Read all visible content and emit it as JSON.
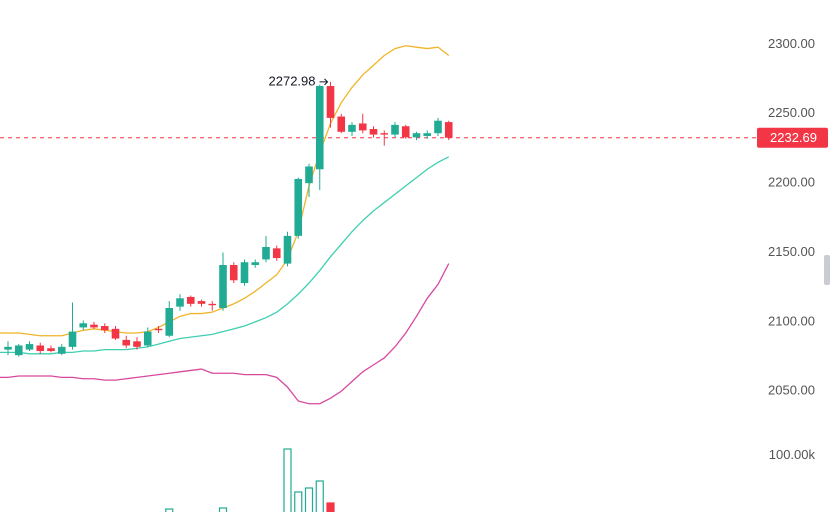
{
  "chart_data": {
    "type": "candlestick",
    "up_color": "#22ab94",
    "down_color": "#f23645",
    "open": [
      2080,
      2076,
      2080,
      2083,
      2081,
      2077,
      2082,
      2096,
      2098,
      2097,
      2095,
      2087,
      2086,
      2083,
      2095,
      2090,
      2111,
      2118,
      2115,
      2113,
      2110,
      2141,
      2128,
      2141,
      2145,
      2153,
      2142,
      2162,
      2200,
      2210,
      2270,
      2248,
      2237,
      2243,
      2239,
      2236,
      2235,
      2241,
      2233,
      2234,
      2236,
      2244
    ],
    "high": [
      2086,
      2084,
      2086,
      2085,
      2083,
      2084,
      2114,
      2101,
      2100,
      2099,
      2097,
      2090,
      2089,
      2096,
      2097,
      2115,
      2120,
      2119,
      2116,
      2115,
      2150,
      2143,
      2145,
      2145,
      2162,
      2155,
      2165,
      2204,
      2214,
      2271,
      2272.98,
      2250,
      2244,
      2250,
      2241,
      2238,
      2244,
      2242,
      2237,
      2238,
      2247,
      2245
    ],
    "low": [
      2076,
      2075,
      2079,
      2077,
      2078,
      2076,
      2080,
      2094,
      2095,
      2092,
      2087,
      2081,
      2080,
      2082,
      2092,
      2089,
      2108,
      2111,
      2111,
      2108,
      2108,
      2128,
      2126,
      2139,
      2143,
      2144,
      2140,
      2160,
      2190,
      2195,
      2240,
      2236,
      2234,
      2236,
      2233,
      2227,
      2233,
      2232,
      2231,
      2232,
      2234,
      2231
    ],
    "close": [
      2082,
      2083,
      2084,
      2079,
      2079,
      2082,
      2093,
      2099,
      2096,
      2094,
      2088,
      2083,
      2082,
      2093,
      2094,
      2110,
      2117,
      2113,
      2113,
      2112,
      2141,
      2130,
      2143,
      2143,
      2154,
      2146,
      2162,
      2203,
      2212,
      2270,
      2247,
      2237,
      2242,
      2238,
      2235,
      2235,
      2242,
      2233,
      2236,
      2236,
      2245,
      2232.69
    ],
    "lines": [
      {
        "color": "#f0b429",
        "values": [
          2092,
          2092,
          2091,
          2090,
          2090,
          2090,
          2092,
          2094,
          2095,
          2094,
          2093,
          2092,
          2092,
          2093,
          2096,
          2100,
          2104,
          2106,
          2106,
          2107,
          2110,
          2113,
          2117,
          2122,
          2128,
          2134,
          2145,
          2165,
          2198,
          2222,
          2243,
          2258,
          2269,
          2278,
          2285,
          2292,
          2297,
          2299,
          2298,
          2297,
          2298,
          2292
        ]
      },
      {
        "color": "#3fcfb0",
        "values": [
          2078,
          2078,
          2077,
          2077,
          2077,
          2078,
          2078,
          2079,
          2079,
          2080,
          2080,
          2080,
          2081,
          2082,
          2084,
          2086,
          2088,
          2089,
          2090,
          2091,
          2093,
          2095,
          2097,
          2100,
          2103,
          2107,
          2113,
          2120,
          2128,
          2137,
          2147,
          2156,
          2165,
          2173,
          2180,
          2186,
          2192,
          2198,
          2204,
          2210,
          2215,
          2219
        ]
      },
      {
        "color": "#d9489e",
        "values": [
          2060,
          2061,
          2061,
          2061,
          2061,
          2060,
          2060,
          2059,
          2059,
          2058,
          2058,
          2059,
          2060,
          2061,
          2062,
          2063,
          2064,
          2065,
          2066,
          2063,
          2063,
          2063,
          2062,
          2062,
          2062,
          2060,
          2053,
          2043,
          2041,
          2041,
          2045,
          2050,
          2057,
          2064,
          2069,
          2074,
          2082,
          2092,
          2104,
          2117,
          2127,
          2142
        ]
      }
    ],
    "ylim": [
      2030,
      2332
    ],
    "yticks": [
      {
        "value": 2300,
        "label": "2300.00"
      },
      {
        "value": 2250,
        "label": "2250.00"
      },
      {
        "value": 2200,
        "label": "2200.00"
      },
      {
        "value": 2150,
        "label": "2150.00"
      },
      {
        "value": 2100,
        "label": "2100.00"
      },
      {
        "value": 2050,
        "label": "2050.00"
      }
    ],
    "volume": [
      null,
      null,
      null,
      null,
      null,
      null,
      null,
      null,
      null,
      null,
      null,
      null,
      null,
      null,
      null,
      71600,
      null,
      null,
      null,
      null,
      72133,
      null,
      null,
      null,
      null,
      null,
      103600,
      80667,
      82800,
      86533,
      74800,
      null,
      null,
      null,
      null,
      null,
      null,
      null,
      null,
      null,
      null,
      null
    ],
    "vlim": [
      70000,
      110000
    ],
    "vticks": [
      {
        "value": 100000,
        "label": "100.00k"
      }
    ],
    "last_line_color": "#f23645"
  }
}
